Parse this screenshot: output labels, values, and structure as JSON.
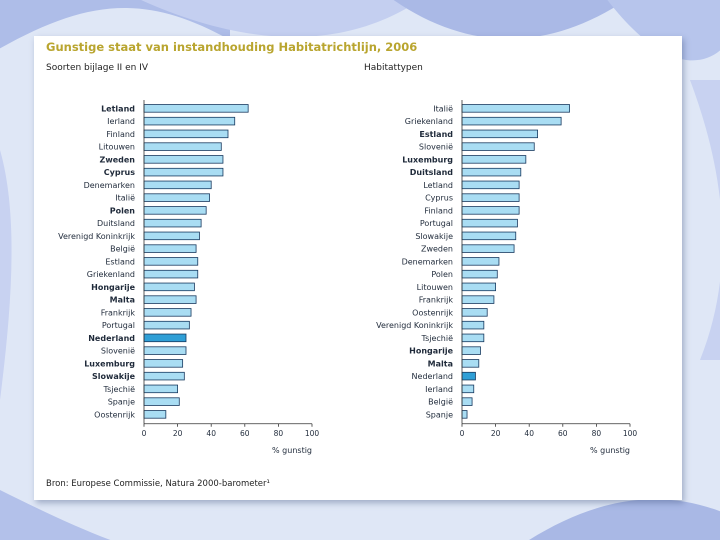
{
  "title": "Gunstige staat van instandhouding Habitatrichtlijn, 2006",
  "source": "Bron: Europese Commissie, Natura 2000-barometer¹",
  "colors": {
    "title": "#b9a52f",
    "bar_fill": "#a9ddf3",
    "bar_stroke": "#17395f",
    "highlight_fill": "#2f9fd6",
    "background": "#dfe7f6"
  },
  "chart_data": [
    {
      "type": "bar",
      "orientation": "horizontal",
      "title": "Soorten bijlage II en IV",
      "xlabel": "% gunstig",
      "xlim": [
        0,
        100
      ],
      "xticks": [
        0,
        20,
        40,
        60,
        80,
        100
      ],
      "highlight": "Nederland",
      "bold_categories": [
        "Letland",
        "Zweden",
        "Cyprus",
        "Polen",
        "Hongarije",
        "Malta",
        "Nederland",
        "Luxemburg",
        "Slowakije"
      ],
      "categories": [
        "Letland",
        "Ierland",
        "Finland",
        "Litouwen",
        "Zweden",
        "Cyprus",
        "Denemarken",
        "Italië",
        "Polen",
        "Duitsland",
        "Verenigd Koninkrijk",
        "België",
        "Estland",
        "Griekenland",
        "Hongarije",
        "Malta",
        "Frankrijk",
        "Portugal",
        "Nederland",
        "Slovenië",
        "Luxemburg",
        "Slowakije",
        "Tsjechië",
        "Spanje",
        "Oostenrijk"
      ],
      "values": [
        62,
        54,
        50,
        46,
        47,
        47,
        40,
        39,
        37,
        34,
        33,
        31,
        32,
        32,
        30,
        31,
        28,
        27,
        25,
        25,
        23,
        24,
        20,
        21,
        13
      ]
    },
    {
      "type": "bar",
      "orientation": "horizontal",
      "title": "Habitattypen",
      "xlabel": "% gunstig",
      "xlim": [
        0,
        100
      ],
      "xticks": [
        0,
        20,
        40,
        60,
        80,
        100
      ],
      "highlight": "Nederland",
      "bold_categories": [
        "Estland",
        "Luxemburg",
        "Duitsland",
        "Hongarije",
        "Malta"
      ],
      "categories": [
        "Italië",
        "Griekenland",
        "Estland",
        "Slovenië",
        "Luxemburg",
        "Duitsland",
        "Letland",
        "Cyprus",
        "Finland",
        "Portugal",
        "Slowakije",
        "Zweden",
        "Denemarken",
        "Polen",
        "Litouwen",
        "Frankrijk",
        "Oostenrijk",
        "Verenigd Koninkrijk",
        "Tsjechië",
        "Hongarije",
        "Malta",
        "Nederland",
        "Ierland",
        "België",
        "Spanje"
      ],
      "values": [
        64,
        59,
        45,
        43,
        38,
        35,
        34,
        34,
        34,
        33,
        32,
        31,
        22,
        21,
        20,
        19,
        15,
        13,
        13,
        11,
        10,
        8,
        7,
        6,
        3
      ]
    }
  ]
}
